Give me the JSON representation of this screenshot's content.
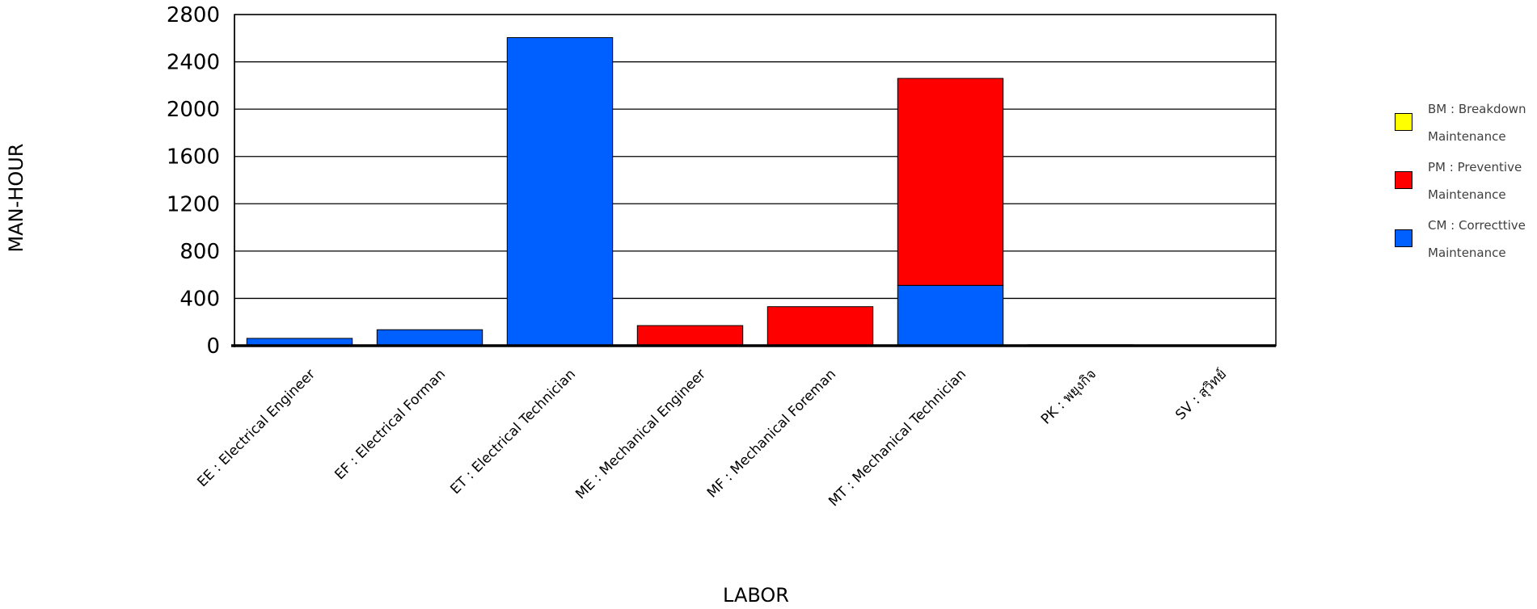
{
  "chart_data": {
    "type": "bar",
    "stacked": true,
    "title": "",
    "xlabel": "LABOR",
    "ylabel": "MAN-HOUR",
    "ylim": [
      0,
      2800
    ],
    "yticks": [
      "0",
      "400",
      "800",
      "1200",
      "1600",
      "2000",
      "2400",
      "2800"
    ],
    "grid": true,
    "legend_position": "right",
    "categories": [
      "EE : Electrical Engineer",
      "EF : Electrical Forman",
      "ET : Electrical Technician",
      "ME : Mechanical Engineer",
      "MF : Mechanical Foreman",
      "MT : Mechanical Technician",
      "PK : พยุงกิจ",
      "SV : สุวิทย์"
    ],
    "series": [
      {
        "name": "CM : Correcttive Maintenance",
        "color": "#0060ff",
        "values": [
          62,
          135,
          2605,
          0,
          0,
          510,
          0,
          0
        ]
      },
      {
        "name": "PM : Preventive Maintenance",
        "color": "#ff0000",
        "values": [
          0,
          0,
          0,
          170,
          330,
          1750,
          8,
          0
        ]
      },
      {
        "name": "BM : Breakdown Maintenance",
        "color": "#ffff00",
        "values": [
          0,
          0,
          0,
          0,
          0,
          0,
          0,
          0
        ]
      }
    ]
  },
  "legend": {
    "items": [
      {
        "label": "BM : Breakdown Maintenance",
        "color": "#ffff00"
      },
      {
        "label": "PM : Preventive Maintenance",
        "color": "#ff0000"
      },
      {
        "label": "CM : Correcttive Maintenance",
        "color": "#0060ff"
      }
    ]
  }
}
